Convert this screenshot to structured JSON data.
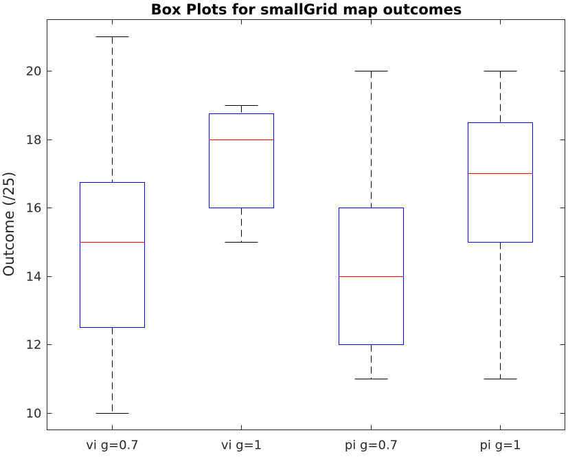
{
  "chart_data": {
    "type": "box",
    "title": "Box Plots for smallGrid map outcomes",
    "xlabel": "",
    "ylabel": "Outcome (/25)",
    "ylim": [
      9.5,
      21.5
    ],
    "yticks": [
      10,
      12,
      14,
      16,
      18,
      20
    ],
    "ytick_labels": [
      "10",
      "12",
      "14",
      "16",
      "18",
      "20"
    ],
    "grid": false,
    "colors": {
      "box": "#0000ff",
      "median": "#ff0000",
      "whisker": "#000000",
      "axis": "#262626"
    },
    "boxes": [
      {
        "label": "vi g=0.7",
        "min": 10,
        "q1": 12.5,
        "median": 15,
        "q3": 16.75,
        "max": 21
      },
      {
        "label": "vi g=1",
        "min": 15,
        "q1": 16,
        "median": 18,
        "q3": 18.75,
        "max": 19
      },
      {
        "label": "pi g=0.7",
        "min": 11,
        "q1": 12,
        "median": 14,
        "q3": 16,
        "max": 20
      },
      {
        "label": "pi g=1",
        "min": 11,
        "q1": 15,
        "median": 17,
        "q3": 18.5,
        "max": 20
      }
    ]
  }
}
